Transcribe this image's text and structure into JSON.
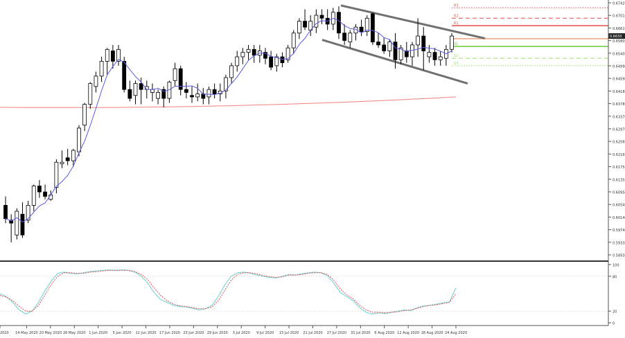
{
  "chart_data": [
    {
      "type": "candlestick",
      "y_ticks": [
        "0.67420",
        "0.67010",
        "0.66610",
        "0.65800",
        "0.65400",
        "0.64990",
        "0.64590",
        "0.64180",
        "0.63780",
        "0.63370",
        "0.62970",
        "0.62560",
        "0.62160",
        "0.61750",
        "0.61350",
        "0.60950",
        "0.60540",
        "0.60140",
        "0.59740",
        "0.59330",
        "0.58930"
      ],
      "current_price": "0.6630",
      "ylim": [
        0.5893,
        0.6742
      ],
      "x_ticks": [
        "2020",
        "14 May 2020",
        "20 May 2020",
        "26 May 2020",
        "1 Jun 2020",
        "5 Jun 2020",
        "11 Jun 2020",
        "17 Jun 2020",
        "23 Jun 2020",
        "29 Jun 2020",
        "3 Jul 2020",
        "9 Jul 2020",
        "15 Jul 2020",
        "21 Jul 2020",
        "27 Jul 2020",
        "31 Jul 2020",
        "6 Aug 2020",
        "12 Aug 2020",
        "18 Aug 2020",
        "24 Aug 2020"
      ],
      "candles": [
        {
          "o": 0.606,
          "h": 0.609,
          "l": 0.6,
          "c": 0.6015
        },
        {
          "o": 0.601,
          "h": 0.603,
          "l": 0.5935,
          "c": 0.6
        },
        {
          "o": 0.596,
          "h": 0.605,
          "l": 0.5945,
          "c": 0.604
        },
        {
          "o": 0.603,
          "h": 0.607,
          "l": 0.595,
          "c": 0.596
        },
        {
          "o": 0.601,
          "h": 0.6075,
          "l": 0.6,
          "c": 0.606
        },
        {
          "o": 0.606,
          "h": 0.613,
          "l": 0.604,
          "c": 0.6125
        },
        {
          "o": 0.6125,
          "h": 0.6145,
          "l": 0.6085,
          "c": 0.6105
        },
        {
          "o": 0.6105,
          "h": 0.613,
          "l": 0.608,
          "c": 0.609
        },
        {
          "o": 0.608,
          "h": 0.611,
          "l": 0.6075,
          "c": 0.6095
        },
        {
          "o": 0.612,
          "h": 0.6215,
          "l": 0.61,
          "c": 0.6205
        },
        {
          "o": 0.62,
          "h": 0.6245,
          "l": 0.6185,
          "c": 0.6205
        },
        {
          "o": 0.622,
          "h": 0.625,
          "l": 0.6195,
          "c": 0.621
        },
        {
          "o": 0.621,
          "h": 0.625,
          "l": 0.619,
          "c": 0.6245
        },
        {
          "o": 0.624,
          "h": 0.633,
          "l": 0.6225,
          "c": 0.632
        },
        {
          "o": 0.633,
          "h": 0.6405,
          "l": 0.631,
          "c": 0.64
        },
        {
          "o": 0.64,
          "h": 0.6475,
          "l": 0.6385,
          "c": 0.647
        },
        {
          "o": 0.646,
          "h": 0.651,
          "l": 0.644,
          "c": 0.6495
        },
        {
          "o": 0.6495,
          "h": 0.656,
          "l": 0.6475,
          "c": 0.6545
        },
        {
          "o": 0.6545,
          "h": 0.659,
          "l": 0.65,
          "c": 0.6585
        },
        {
          "o": 0.658,
          "h": 0.66,
          "l": 0.652,
          "c": 0.6545
        },
        {
          "o": 0.6545,
          "h": 0.66,
          "l": 0.653,
          "c": 0.6585
        },
        {
          "o": 0.6545,
          "h": 0.656,
          "l": 0.644,
          "c": 0.645
        },
        {
          "o": 0.645,
          "h": 0.648,
          "l": 0.641,
          "c": 0.642
        },
        {
          "o": 0.643,
          "h": 0.648,
          "l": 0.64,
          "c": 0.647
        },
        {
          "o": 0.647,
          "h": 0.649,
          "l": 0.64,
          "c": 0.645
        },
        {
          "o": 0.645,
          "h": 0.648,
          "l": 0.642,
          "c": 0.646
        },
        {
          "o": 0.644,
          "h": 0.647,
          "l": 0.641,
          "c": 0.645
        },
        {
          "o": 0.642,
          "h": 0.645,
          "l": 0.64,
          "c": 0.644
        },
        {
          "o": 0.645,
          "h": 0.646,
          "l": 0.639,
          "c": 0.642
        },
        {
          "o": 0.642,
          "h": 0.648,
          "l": 0.6405,
          "c": 0.6475
        },
        {
          "o": 0.648,
          "h": 0.654,
          "l": 0.646,
          "c": 0.652
        },
        {
          "o": 0.652,
          "h": 0.653,
          "l": 0.643,
          "c": 0.645
        },
        {
          "o": 0.645,
          "h": 0.6475,
          "l": 0.642,
          "c": 0.644
        },
        {
          "o": 0.643,
          "h": 0.646,
          "l": 0.6405,
          "c": 0.6425
        },
        {
          "o": 0.6425,
          "h": 0.647,
          "l": 0.641,
          "c": 0.6435
        },
        {
          "o": 0.6435,
          "h": 0.6455,
          "l": 0.64,
          "c": 0.642
        },
        {
          "o": 0.6425,
          "h": 0.646,
          "l": 0.64,
          "c": 0.645
        },
        {
          "o": 0.645,
          "h": 0.647,
          "l": 0.642,
          "c": 0.6435
        },
        {
          "o": 0.6435,
          "h": 0.647,
          "l": 0.641,
          "c": 0.6445
        },
        {
          "o": 0.6445,
          "h": 0.65,
          "l": 0.642,
          "c": 0.649
        },
        {
          "o": 0.649,
          "h": 0.654,
          "l": 0.647,
          "c": 0.653
        },
        {
          "o": 0.653,
          "h": 0.658,
          "l": 0.651,
          "c": 0.656
        },
        {
          "o": 0.656,
          "h": 0.659,
          "l": 0.6535,
          "c": 0.6575
        },
        {
          "o": 0.6575,
          "h": 0.66,
          "l": 0.655,
          "c": 0.6585
        },
        {
          "o": 0.6585,
          "h": 0.66,
          "l": 0.654,
          "c": 0.6565
        },
        {
          "o": 0.6565,
          "h": 0.66,
          "l": 0.654,
          "c": 0.658
        },
        {
          "o": 0.6575,
          "h": 0.659,
          "l": 0.6535,
          "c": 0.6555
        },
        {
          "o": 0.656,
          "h": 0.658,
          "l": 0.6515,
          "c": 0.6525
        },
        {
          "o": 0.653,
          "h": 0.657,
          "l": 0.651,
          "c": 0.656
        },
        {
          "o": 0.656,
          "h": 0.6575,
          "l": 0.6525,
          "c": 0.654
        },
        {
          "o": 0.655,
          "h": 0.66,
          "l": 0.654,
          "c": 0.659
        },
        {
          "o": 0.659,
          "h": 0.665,
          "l": 0.657,
          "c": 0.664
        },
        {
          "o": 0.664,
          "h": 0.669,
          "l": 0.662,
          "c": 0.668
        },
        {
          "o": 0.668,
          "h": 0.672,
          "l": 0.665,
          "c": 0.666
        },
        {
          "o": 0.665,
          "h": 0.67,
          "l": 0.663,
          "c": 0.668
        },
        {
          "o": 0.666,
          "h": 0.672,
          "l": 0.664,
          "c": 0.67
        },
        {
          "o": 0.67,
          "h": 0.672,
          "l": 0.667,
          "c": 0.669
        },
        {
          "o": 0.669,
          "h": 0.672,
          "l": 0.665,
          "c": 0.667
        },
        {
          "o": 0.667,
          "h": 0.6725,
          "l": 0.665,
          "c": 0.671
        },
        {
          "o": 0.671,
          "h": 0.673,
          "l": 0.662,
          "c": 0.664
        },
        {
          "o": 0.664,
          "h": 0.667,
          "l": 0.66,
          "c": 0.6615
        },
        {
          "o": 0.661,
          "h": 0.665,
          "l": 0.659,
          "c": 0.664
        },
        {
          "o": 0.664,
          "h": 0.667,
          "l": 0.6615,
          "c": 0.666
        },
        {
          "o": 0.666,
          "h": 0.6685,
          "l": 0.663,
          "c": 0.6645
        },
        {
          "o": 0.6645,
          "h": 0.67,
          "l": 0.663,
          "c": 0.669
        },
        {
          "o": 0.6705,
          "h": 0.671,
          "l": 0.66,
          "c": 0.661
        },
        {
          "o": 0.661,
          "h": 0.664,
          "l": 0.659,
          "c": 0.66
        },
        {
          "o": 0.66,
          "h": 0.6625,
          "l": 0.657,
          "c": 0.658
        },
        {
          "o": 0.658,
          "h": 0.662,
          "l": 0.656,
          "c": 0.661
        },
        {
          "o": 0.661,
          "h": 0.664,
          "l": 0.652,
          "c": 0.655
        },
        {
          "o": 0.655,
          "h": 0.66,
          "l": 0.6535,
          "c": 0.659
        },
        {
          "o": 0.658,
          "h": 0.661,
          "l": 0.654,
          "c": 0.656
        },
        {
          "o": 0.656,
          "h": 0.661,
          "l": 0.653,
          "c": 0.66
        },
        {
          "o": 0.66,
          "h": 0.669,
          "l": 0.656,
          "c": 0.663
        },
        {
          "o": 0.663,
          "h": 0.666,
          "l": 0.6515,
          "c": 0.658
        },
        {
          "o": 0.656,
          "h": 0.66,
          "l": 0.654,
          "c": 0.6575
        },
        {
          "o": 0.6575,
          "h": 0.659,
          "l": 0.653,
          "c": 0.655
        },
        {
          "o": 0.655,
          "h": 0.658,
          "l": 0.653,
          "c": 0.656
        },
        {
          "o": 0.6555,
          "h": 0.66,
          "l": 0.653,
          "c": 0.6585
        },
        {
          "o": 0.6585,
          "h": 0.664,
          "l": 0.6575,
          "c": 0.663
        }
      ],
      "moving_average_200": {
        "start": 0.639,
        "mid": 0.6383,
        "end": 0.6425,
        "color": "#f08080"
      },
      "fast_ma_color": "#5a5ae6",
      "channel": {
        "upper_start": 0.6733,
        "upper_end": 0.6622,
        "lower_start": 0.6617,
        "lower_end": 0.647
      },
      "levels": [
        {
          "label": "R3",
          "value": 0.6725,
          "style": "dotted",
          "color": "#e74c4c"
        },
        {
          "label": "R2",
          "value": 0.669,
          "style": "dashed",
          "color": "#e74c4c"
        },
        {
          "label": "R1",
          "value": 0.6665,
          "style": "solid",
          "color": "#e74c4c"
        },
        {
          "label": "",
          "value": 0.6621,
          "style": "solid",
          "color": "#f3a07a"
        },
        {
          "label": "S1",
          "value": 0.6595,
          "style": "solid",
          "color": "#66cc33"
        },
        {
          "label": "S2",
          "value": 0.6555,
          "style": "dashed",
          "color": "#99dd66"
        },
        {
          "label": "S3",
          "value": 0.653,
          "style": "dotted",
          "color": "#99dd66"
        }
      ]
    },
    {
      "type": "line",
      "name": "stochastic",
      "ylim": [
        0,
        100
      ],
      "y_ticks": [
        "100",
        "80",
        "20",
        "0"
      ],
      "k_line_color": "#7fd6d6",
      "d_line_color": "#e05050",
      "k": [
        50,
        45,
        35,
        22,
        15,
        20,
        35,
        55,
        72,
        85,
        87,
        85,
        84,
        86,
        88,
        89,
        90,
        91,
        90,
        91,
        90,
        87,
        80,
        68,
        52,
        40,
        35,
        30,
        28,
        27,
        25,
        22,
        24,
        30,
        45,
        65,
        80,
        86,
        87,
        85,
        82,
        80,
        78,
        77,
        80,
        83,
        82,
        84,
        86,
        87,
        86,
        81,
        68,
        52,
        45,
        38,
        26,
        18,
        15,
        17,
        16,
        18,
        20,
        22,
        21,
        26,
        29,
        30,
        32,
        34,
        36,
        60
      ],
      "d": [
        47,
        44,
        38,
        28,
        20,
        20,
        30,
        48,
        66,
        80,
        86,
        86,
        85,
        85,
        87,
        88,
        89,
        90,
        90,
        90,
        90,
        88,
        83,
        74,
        60,
        47,
        38,
        32,
        29,
        28,
        26,
        24,
        24,
        27,
        38,
        56,
        73,
        83,
        86,
        86,
        84,
        81,
        79,
        78,
        79,
        82,
        82,
        83,
        85,
        86,
        86,
        83,
        73,
        58,
        48,
        41,
        30,
        22,
        18,
        18,
        17,
        18,
        19,
        21,
        22,
        25,
        28,
        30,
        31,
        33,
        35,
        50
      ]
    }
  ]
}
